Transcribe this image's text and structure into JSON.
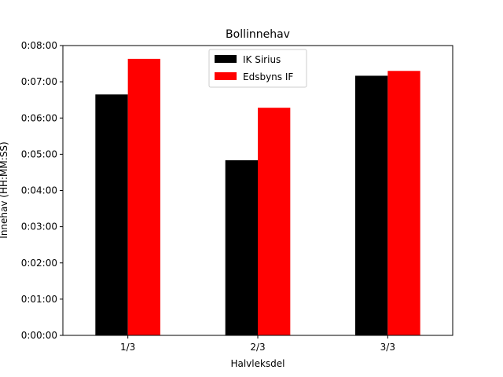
{
  "chart_data": {
    "type": "bar",
    "title": "Bollinnehav",
    "xlabel": "Halvleksdel",
    "ylabel": "Innehav (HH:MM:SS)",
    "categories": [
      "1/3",
      "2/3",
      "3/3"
    ],
    "series": [
      {
        "name": "IK Sirius",
        "color": "#000000",
        "values": [
          399,
          290,
          430
        ]
      },
      {
        "name": "Edsbyns IF",
        "color": "#ff0000",
        "values": [
          458,
          377,
          438
        ]
      }
    ],
    "ylim": [
      0,
      480
    ],
    "yticks": [
      0,
      60,
      120,
      180,
      240,
      300,
      360,
      420,
      480
    ],
    "ytick_labels": [
      "0:00:00",
      "0:01:00",
      "0:02:00",
      "0:03:00",
      "0:04:00",
      "0:05:00",
      "0:06:00",
      "0:07:00",
      "0:08:00"
    ],
    "grid": false,
    "legend_position": "top-center"
  }
}
